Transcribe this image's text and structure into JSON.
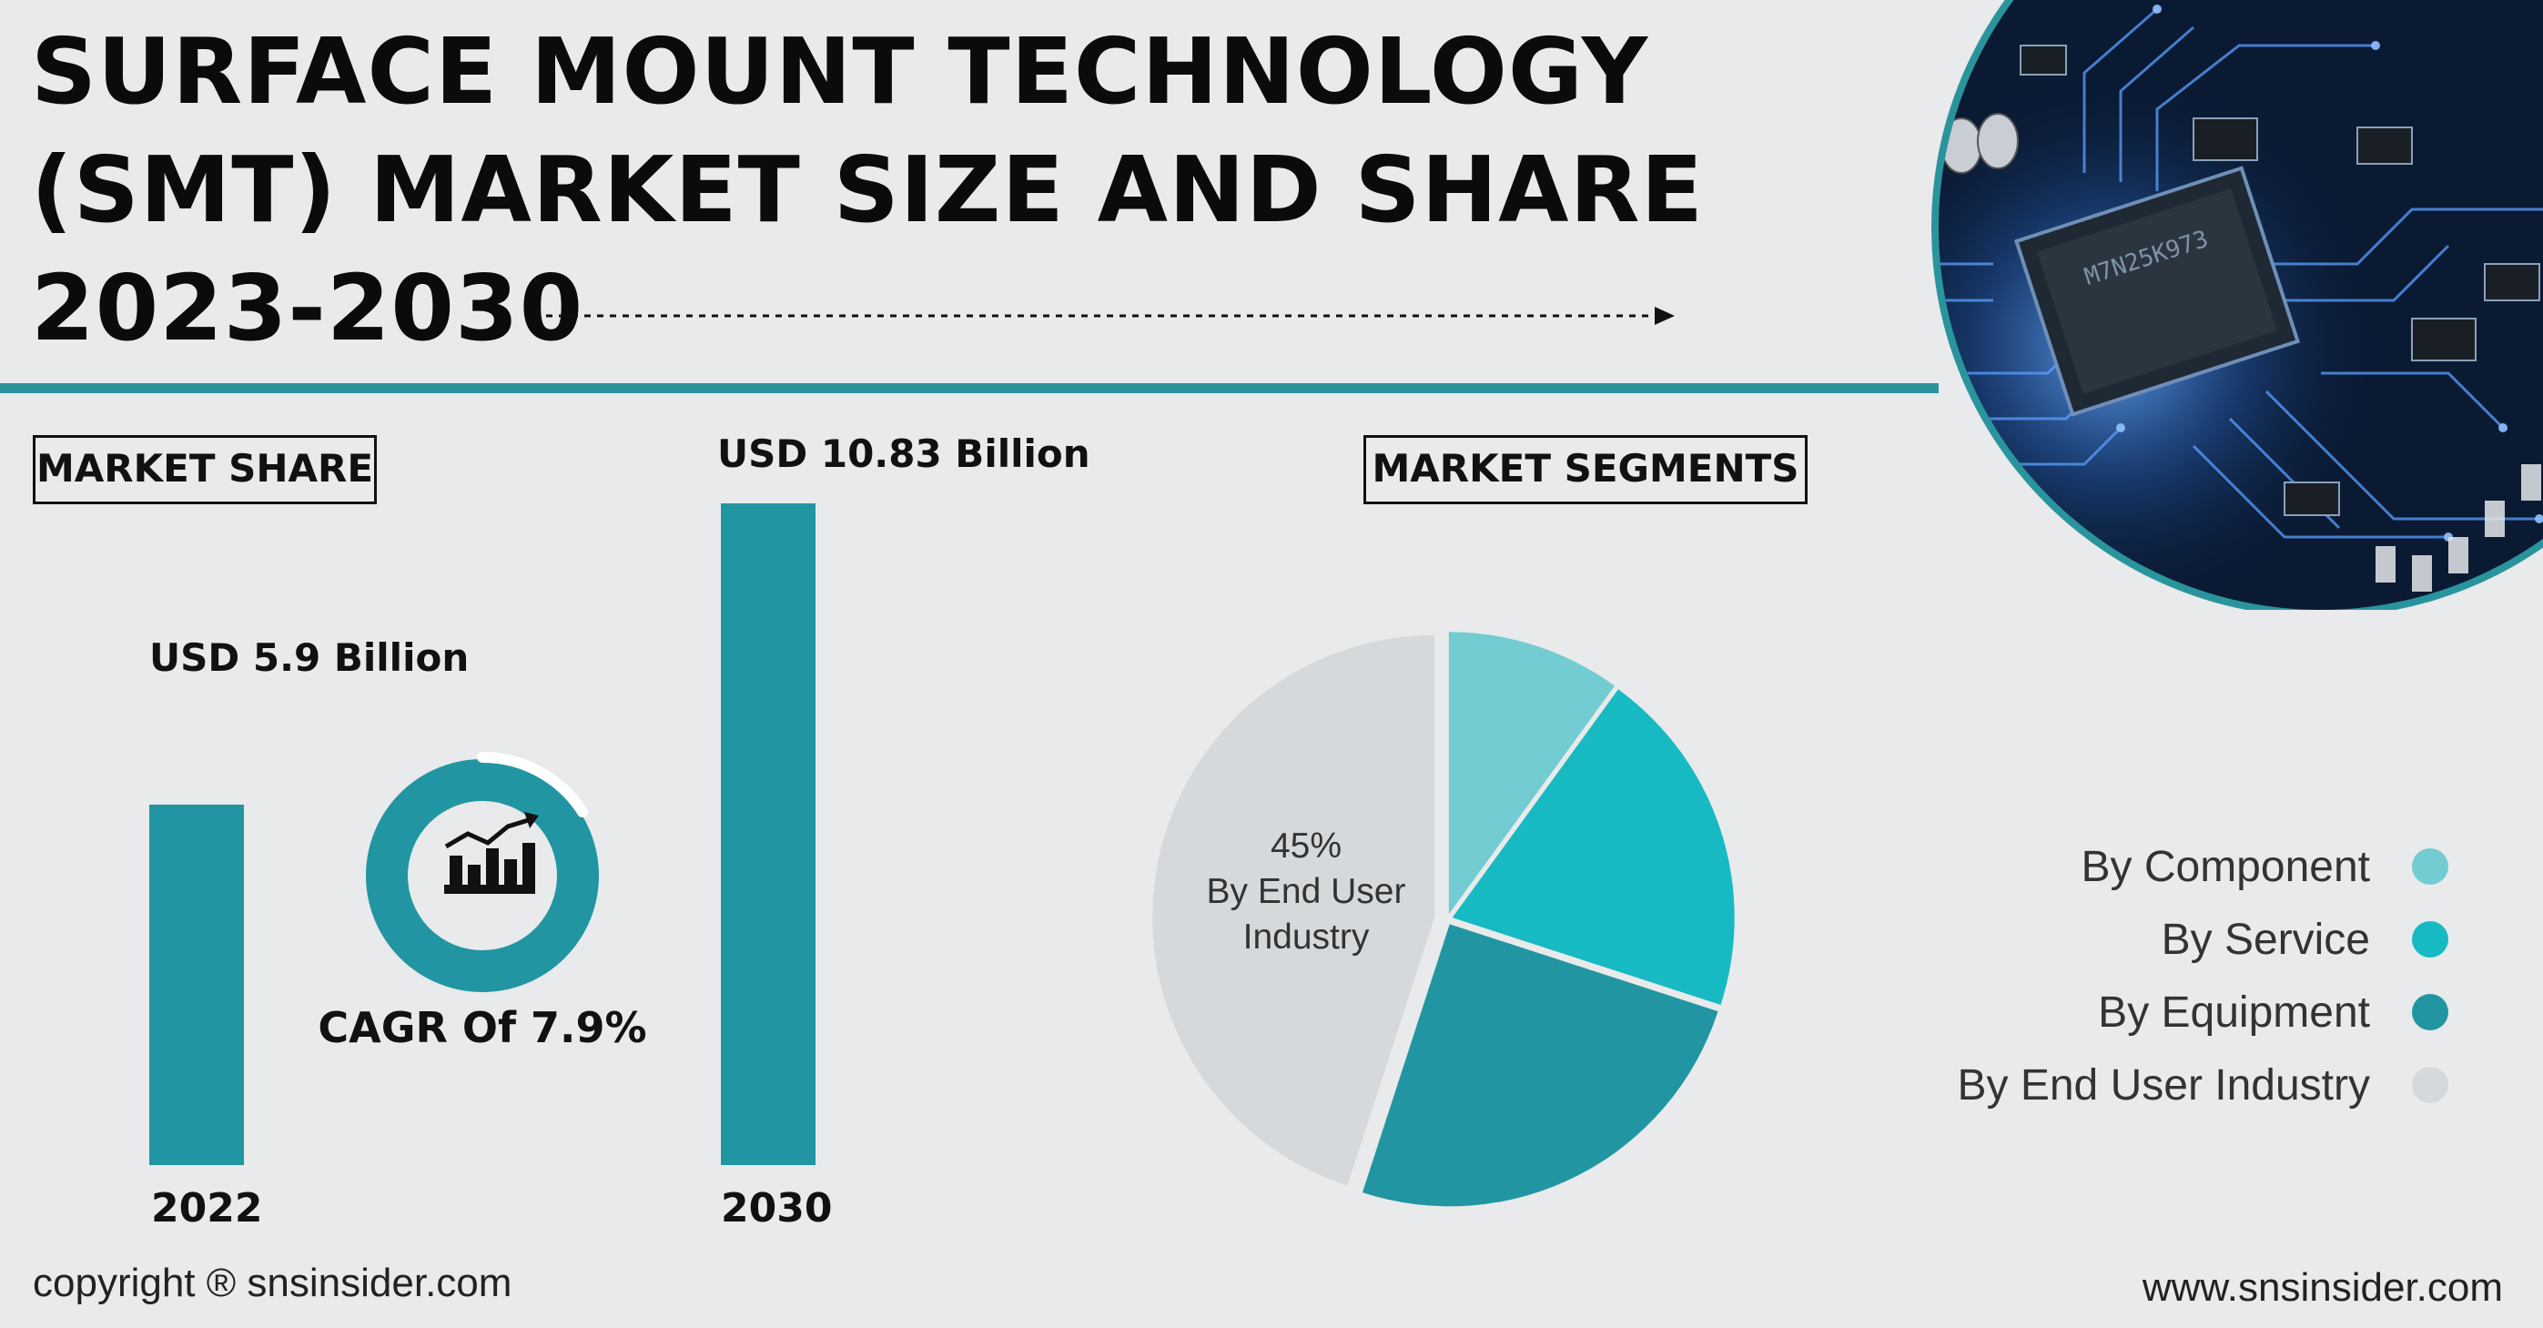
{
  "title": {
    "line1": "SURFACE MOUNT TECHNOLOGY",
    "line2": "(SMT) MARKET SIZE AND SHARE",
    "line3": "2023-2030"
  },
  "market_share": {
    "heading": "MARKET SHARE",
    "bars": [
      {
        "year": "2022",
        "label": "USD 5.9 Billion",
        "value": 5.9
      },
      {
        "year": "2030",
        "label": "USD 10.83 Billion",
        "value": 10.83
      }
    ],
    "cagr": "CAGR Of 7.9%"
  },
  "segments": {
    "heading": "MARKET SEGMENTS",
    "pie_label": {
      "percent": "45%",
      "line2": "By End User",
      "line3": "Industry"
    },
    "legend": [
      {
        "label": "By Component",
        "color": "#72ccd1"
      },
      {
        "label": "By Service",
        "color": "#17b9c3"
      },
      {
        "label": "By Equipment",
        "color": "#2196a2"
      },
      {
        "label": "By End User Industry",
        "color": "#d5d9dc"
      }
    ]
  },
  "chart_data": [
    {
      "type": "bar",
      "categories": [
        "2022",
        "2030"
      ],
      "values": [
        5.9,
        10.83
      ],
      "data_labels": [
        "USD 5.9 Billion",
        "USD 10.83 Billion"
      ],
      "color": "#2196a2"
    },
    {
      "type": "pie",
      "categories": [
        "By Component",
        "By Service",
        "By Equipment",
        "By End User Industry"
      ],
      "values": [
        10,
        20,
        25,
        45
      ],
      "colors": [
        "#72ccd1",
        "#17b9c3",
        "#2196a2",
        "#d5d9dc"
      ],
      "annotations": [
        "45% By End User Industry"
      ]
    }
  ],
  "footer": {
    "copyright": "copyright ® snsinsider.com",
    "website": "www.snsinsider.com"
  },
  "colors": {
    "accent": "#2a949d",
    "background": "#e9eaeb"
  },
  "icons": {
    "cagr": "growth-chart-icon",
    "decor": "circuit-board-image"
  }
}
